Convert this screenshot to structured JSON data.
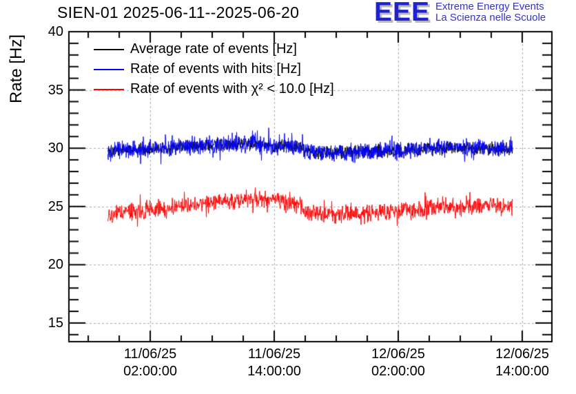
{
  "header": {
    "title": "SIEN-01 2025-06-11--2025-06-20",
    "logo": {
      "acronym": "EEE",
      "line1": "Extreme Energy Events",
      "line2": "La Scienza nelle Scuole",
      "text_color": "#3333cc",
      "acronym_color": "#2222cc",
      "shadow_color": "#b9b9b9"
    }
  },
  "legend": {
    "entries": [
      {
        "label": "Average rate of events [Hz]",
        "series": 0
      },
      {
        "label": "Rate of events with hits [Hz]",
        "series": 1
      },
      {
        "label": "Rate of events with χ² < 10.0 [Hz]",
        "series": 2
      }
    ]
  },
  "chart_data": {
    "type": "line",
    "title": "SIEN-01 2025-06-11--2025-06-20",
    "xlabel": "",
    "ylabel": "Rate [Hz]",
    "grid": true,
    "legend_position": "top-left",
    "ylim": [
      13.4,
      40
    ],
    "yticks": [
      40,
      35,
      30,
      25,
      20,
      15
    ],
    "y_minor_step": 1,
    "xlim_hours": [
      -7.87,
      38.87
    ],
    "x_minor_step_hours": 3,
    "x_major_ticks": [
      {
        "hour": 0,
        "label_line1": "11/06/25",
        "label_line2": "02:00:00"
      },
      {
        "hour": 12,
        "label_line1": "11/06/25",
        "label_line2": "14:00:00"
      },
      {
        "hour": 24,
        "label_line1": "12/06/25",
        "label_line2": "02:00:00"
      },
      {
        "hour": 36,
        "label_line1": "12/06/25",
        "label_line2": "14:00:00"
      }
    ],
    "data_range_hours": [
      -4.1,
      35.1
    ],
    "points_per_hour": 30,
    "colors": {
      "grid": "#a9a9a9",
      "frame": "#000000"
    },
    "series": [
      {
        "name": "Average rate of events [Hz]",
        "color": "#000000",
        "noise_std": 0.28,
        "spike_prob": 0.0,
        "seed": 101,
        "keyframes": [
          [
            -4.1,
            29.8
          ],
          [
            -1.2,
            29.9
          ],
          [
            2.8,
            30.1
          ],
          [
            6.8,
            30.3
          ],
          [
            10.1,
            30.4
          ],
          [
            12.1,
            30.2
          ],
          [
            14.5,
            30.1
          ],
          [
            15.0,
            29.7
          ],
          [
            17.5,
            29.6
          ],
          [
            20.8,
            29.7
          ],
          [
            25.5,
            29.9
          ],
          [
            28.1,
            30.0
          ],
          [
            32.1,
            30.0
          ],
          [
            35.1,
            29.9
          ]
        ]
      },
      {
        "name": "Rate of events with hits [Hz]",
        "color": "#0000ff",
        "noise_std": 0.36,
        "spike_prob": 0.08,
        "seed": 13,
        "keyframes": [
          [
            -4.1,
            29.8
          ],
          [
            -1.2,
            29.9
          ],
          [
            2.8,
            30.1
          ],
          [
            6.8,
            30.3
          ],
          [
            10.1,
            30.4
          ],
          [
            12.1,
            30.2
          ],
          [
            14.5,
            30.1
          ],
          [
            15.0,
            29.7
          ],
          [
            17.5,
            29.6
          ],
          [
            20.8,
            29.7
          ],
          [
            25.5,
            29.9
          ],
          [
            28.1,
            30.0
          ],
          [
            32.1,
            30.0
          ],
          [
            35.1,
            29.9
          ]
        ]
      },
      {
        "name": "Rate of events with χ² < 10.0 [Hz]",
        "color": "#ff0000",
        "noise_std": 0.36,
        "spike_prob": 0.08,
        "seed": 29,
        "keyframes": [
          [
            -4.1,
            24.3
          ],
          [
            -1.2,
            24.6
          ],
          [
            2.8,
            25.0
          ],
          [
            6.8,
            25.4
          ],
          [
            9.5,
            25.6
          ],
          [
            11.8,
            25.5
          ],
          [
            13.5,
            25.4
          ],
          [
            14.5,
            25.3
          ],
          [
            15.0,
            24.5
          ],
          [
            17.0,
            24.3
          ],
          [
            20.1,
            24.3
          ],
          [
            22.8,
            24.5
          ],
          [
            25.5,
            24.7
          ],
          [
            28.1,
            24.9
          ],
          [
            30.8,
            25.0
          ],
          [
            32.8,
            25.1
          ],
          [
            35.1,
            24.9
          ]
        ]
      }
    ]
  }
}
